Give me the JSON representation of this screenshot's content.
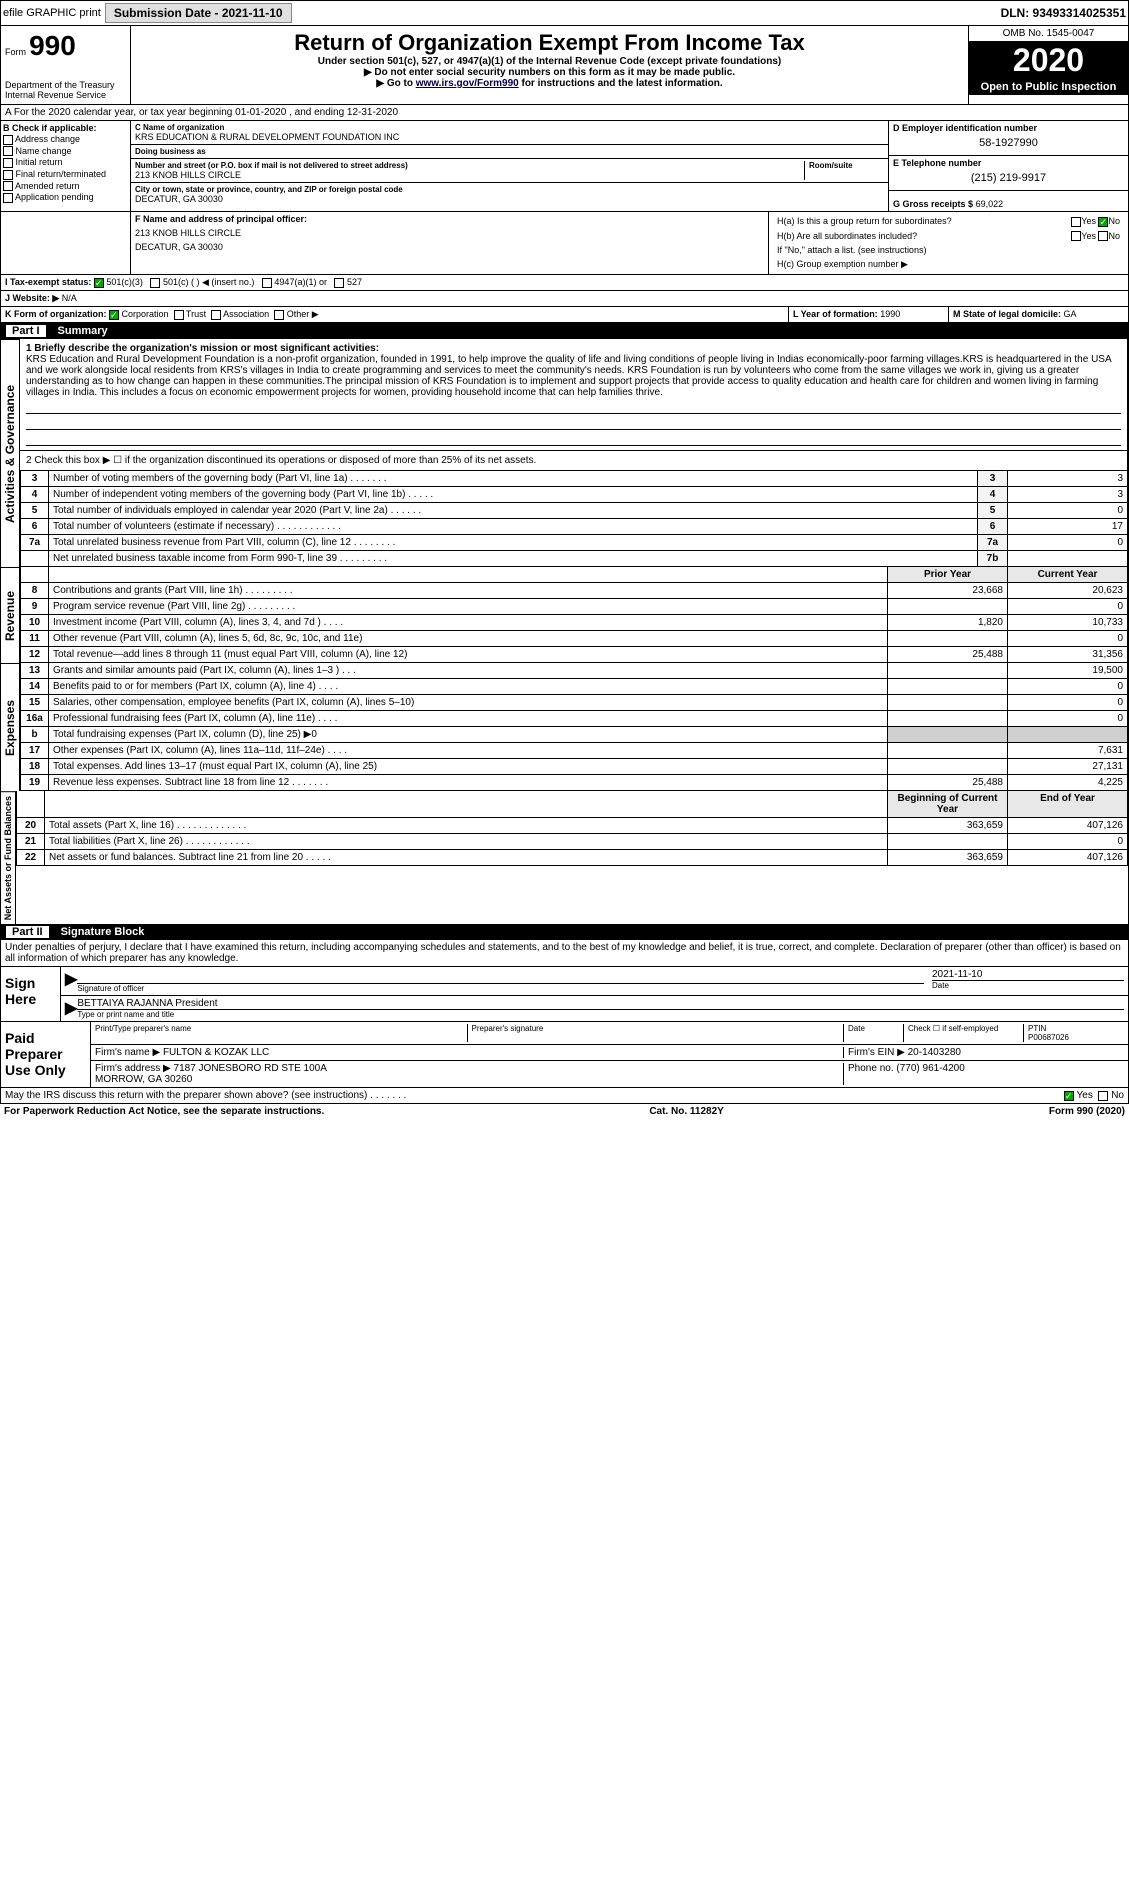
{
  "topbar": {
    "efile": "efile GRAPHIC print",
    "submission_label": "Submission Date - 2021-11-10",
    "dln": "DLN: 93493314025351"
  },
  "header": {
    "form_label": "Form",
    "form_number": "990",
    "dept": "Department of the Treasury\nInternal Revenue Service",
    "title": "Return of Organization Exempt From Income Tax",
    "subtitle": "Under section 501(c), 527, or 4947(a)(1) of the Internal Revenue Code (except private foundations)",
    "note1": "▶ Do not enter social security numbers on this form as it may be made public.",
    "note2": "▶ Go to www.irs.gov/Form990 for instructions and the latest information.",
    "omb": "OMB No. 1545-0047",
    "year": "2020",
    "open": "Open to Public Inspection"
  },
  "period": "A For the 2020 calendar year, or tax year beginning 01-01-2020    , and ending 12-31-2020",
  "box_b": {
    "label": "B Check if applicable:",
    "items": [
      "Address change",
      "Name change",
      "Initial return",
      "Final return/terminated",
      "Amended return",
      "Application pending"
    ]
  },
  "box_c": {
    "name_label": "C Name of organization",
    "name": "KRS EDUCATION & RURAL DEVELOPMENT FOUNDATION INC",
    "dba_label": "Doing business as",
    "dba": "",
    "addr_label": "Number and street (or P.O. box if mail is not delivered to street address)",
    "addr": "213 KNOB HILLS CIRCLE",
    "room_label": "Room/suite",
    "city_label": "City or town, state or province, country, and ZIP or foreign postal code",
    "city": "DECATUR, GA  30030"
  },
  "box_d": {
    "label": "D Employer identification number",
    "value": "58-1927990"
  },
  "box_e": {
    "label": "E Telephone number",
    "value": "(215) 219-9917"
  },
  "box_g": {
    "label": "G Gross receipts $",
    "value": "69,022"
  },
  "box_f": {
    "label": "F  Name and address of principal officer:",
    "addr1": "213 KNOB HILLS CIRCLE",
    "addr2": "DECATUR, GA  30030"
  },
  "box_h": {
    "a_label": "H(a)  Is this a group return for subordinates?",
    "a_yes": "Yes",
    "a_no": "No",
    "b_label": "H(b)  Are all subordinates included?",
    "b_yes": "Yes",
    "b_no": "No",
    "b_note": "If \"No,\" attach a list. (see instructions)",
    "c_label": "H(c)  Group exemption number ▶"
  },
  "box_i": {
    "label": "I  Tax-exempt status:",
    "opts": [
      "501(c)(3)",
      "501(c) (  ) ◀ (insert no.)",
      "4947(a)(1) or",
      "527"
    ]
  },
  "box_j": {
    "label": "J  Website: ▶",
    "value": "N/A"
  },
  "box_k": {
    "label": "K Form of organization:",
    "opts": [
      "Corporation",
      "Trust",
      "Association",
      "Other ▶"
    ]
  },
  "box_l": {
    "label": "L Year of formation:",
    "value": "1990"
  },
  "box_m": {
    "label": "M State of legal domicile:",
    "value": "GA"
  },
  "part1": {
    "label": "Part I",
    "title": "Summary",
    "sidebar_gov": "Activities & Governance",
    "sidebar_rev": "Revenue",
    "sidebar_exp": "Expenses",
    "sidebar_net": "Net Assets or Fund Balances",
    "line1_label": "1  Briefly describe the organization's mission or most significant activities:",
    "mission": "KRS Education and Rural Development Foundation is a non-profit organization, founded in 1991, to help improve the quality of life and living conditions of people living in Indias economically-poor farming villages.KRS is headquartered in the USA and we work alongside local residents from KRS's villages in India to create programming and services to meet the community's needs. KRS Foundation is run by volunteers who come from the same villages we work in, giving us a greater understanding as to how change can happen in these communities.The principal mission of KRS Foundation is to implement and support projects that provide access to quality education and health care for children and women living in farming villages in India. This includes a focus on economic empowerment projects for women, providing household income that can help families thrive.",
    "line2": "2   Check this box ▶ ☐ if the organization discontinued its operations or disposed of more than 25% of its net assets.",
    "gov_rows": [
      {
        "n": "3",
        "label": "Number of voting members of the governing body (Part VI, line 1a)  .   .   .   .   .   .   .",
        "box": "3",
        "val": "3"
      },
      {
        "n": "4",
        "label": "Number of independent voting members of the governing body (Part VI, line 1b)  .   .   .   .   .",
        "box": "4",
        "val": "3"
      },
      {
        "n": "5",
        "label": "Total number of individuals employed in calendar year 2020 (Part V, line 2a)  .   .   .   .   .   .",
        "box": "5",
        "val": "0"
      },
      {
        "n": "6",
        "label": "Total number of volunteers (estimate if necessary)  .   .   .   .   .   .   .   .   .   .   .   .",
        "box": "6",
        "val": "17"
      },
      {
        "n": "7a",
        "label": "Total unrelated business revenue from Part VIII, column (C), line 12  .   .   .   .   .   .   .   .",
        "box": "7a",
        "val": "0"
      },
      {
        "n": "",
        "label": "Net unrelated business taxable income from Form 990-T, line 39  .   .   .   .   .   .   .   .   .",
        "box": "7b",
        "val": ""
      }
    ],
    "prior_hdr": "Prior Year",
    "curr_hdr": "Current Year",
    "rev_rows": [
      {
        "n": "8",
        "label": "Contributions and grants (Part VIII, line 1h)  .   .   .   .   .   .   .   .   .",
        "prior": "23,668",
        "curr": "20,623"
      },
      {
        "n": "9",
        "label": "Program service revenue (Part VIII, line 2g)  .   .   .   .   .   .   .   .   .",
        "prior": "",
        "curr": "0"
      },
      {
        "n": "10",
        "label": "Investment income (Part VIII, column (A), lines 3, 4, and 7d )  .   .   .   .",
        "prior": "1,820",
        "curr": "10,733"
      },
      {
        "n": "11",
        "label": "Other revenue (Part VIII, column (A), lines 5, 6d, 8c, 9c, 10c, and 11e)",
        "prior": "",
        "curr": "0"
      },
      {
        "n": "12",
        "label": "Total revenue—add lines 8 through 11 (must equal Part VIII, column (A), line 12)",
        "prior": "25,488",
        "curr": "31,356"
      }
    ],
    "exp_rows": [
      {
        "n": "13",
        "label": "Grants and similar amounts paid (Part IX, column (A), lines 1–3 )  .   .   .",
        "prior": "",
        "curr": "19,500"
      },
      {
        "n": "14",
        "label": "Benefits paid to or for members (Part IX, column (A), line 4)  .   .   .   .",
        "prior": "",
        "curr": "0"
      },
      {
        "n": "15",
        "label": "Salaries, other compensation, employee benefits (Part IX, column (A), lines 5–10)",
        "prior": "",
        "curr": "0"
      },
      {
        "n": "16a",
        "label": "Professional fundraising fees (Part IX, column (A), line 11e)  .   .   .   .",
        "prior": "",
        "curr": "0"
      },
      {
        "n": "b",
        "label": "Total fundraising expenses (Part IX, column (D), line 25) ▶0",
        "prior": "grey",
        "curr": "grey"
      },
      {
        "n": "17",
        "label": "Other expenses (Part IX, column (A), lines 11a–11d, 11f–24e)  .   .   .   .",
        "prior": "",
        "curr": "7,631"
      },
      {
        "n": "18",
        "label": "Total expenses. Add lines 13–17 (must equal Part IX, column (A), line 25)",
        "prior": "",
        "curr": "27,131"
      },
      {
        "n": "19",
        "label": "Revenue less expenses. Subtract line 18 from line 12  .   .   .   .   .   .   .",
        "prior": "25,488",
        "curr": "4,225"
      }
    ],
    "net_hdr_prior": "Beginning of Current Year",
    "net_hdr_curr": "End of Year",
    "net_rows": [
      {
        "n": "20",
        "label": "Total assets (Part X, line 16)  .   .   .   .   .   .   .   .   .   .   .   .   .",
        "prior": "363,659",
        "curr": "407,126"
      },
      {
        "n": "21",
        "label": "Total liabilities (Part X, line 26)  .   .   .   .   .   .   .   .   .   .   .   .",
        "prior": "",
        "curr": "0"
      },
      {
        "n": "22",
        "label": "Net assets or fund balances. Subtract line 21 from line 20  .   .   .   .   .",
        "prior": "363,659",
        "curr": "407,126"
      }
    ]
  },
  "part2": {
    "label": "Part II",
    "title": "Signature Block",
    "penalty": "Under penalties of perjury, I declare that I have examined this return, including accompanying schedules and statements, and to the best of my knowledge and belief, it is true, correct, and complete. Declaration of preparer (other than officer) is based on all information of which preparer has any knowledge.",
    "sign_here": "Sign Here",
    "sig_officer": "Signature of officer",
    "sig_date_label": "Date",
    "sig_date": "2021-11-10",
    "officer_name": "BETTAIYA RAJANNA  President",
    "officer_title_label": "Type or print name and title",
    "paid": "Paid Preparer Use Only",
    "prep_name_label": "Print/Type preparer's name",
    "prep_sig_label": "Preparer's signature",
    "prep_date_label": "Date",
    "prep_check_label": "Check ☐ if self-employed",
    "ptin_label": "PTIN",
    "ptin": "P00687026",
    "firm_name_label": "Firm's name    ▶",
    "firm_name": "FULTON & KOZAK LLC",
    "firm_ein_label": "Firm's EIN ▶",
    "firm_ein": "20-1403280",
    "firm_addr_label": "Firm's address ▶",
    "firm_addr": "7187 JONESBORO RD STE 100A\nMORROW, GA  30260",
    "firm_phone_label": "Phone no.",
    "firm_phone": "(770) 961-4200",
    "discuss": "May the IRS discuss this return with the preparer shown above? (see instructions)  .   .   .   .   .   .   .",
    "discuss_yes": "Yes",
    "discuss_no": "No"
  },
  "footer": {
    "left": "For Paperwork Reduction Act Notice, see the separate instructions.",
    "mid": "Cat. No. 11282Y",
    "right": "Form 990 (2020)"
  }
}
